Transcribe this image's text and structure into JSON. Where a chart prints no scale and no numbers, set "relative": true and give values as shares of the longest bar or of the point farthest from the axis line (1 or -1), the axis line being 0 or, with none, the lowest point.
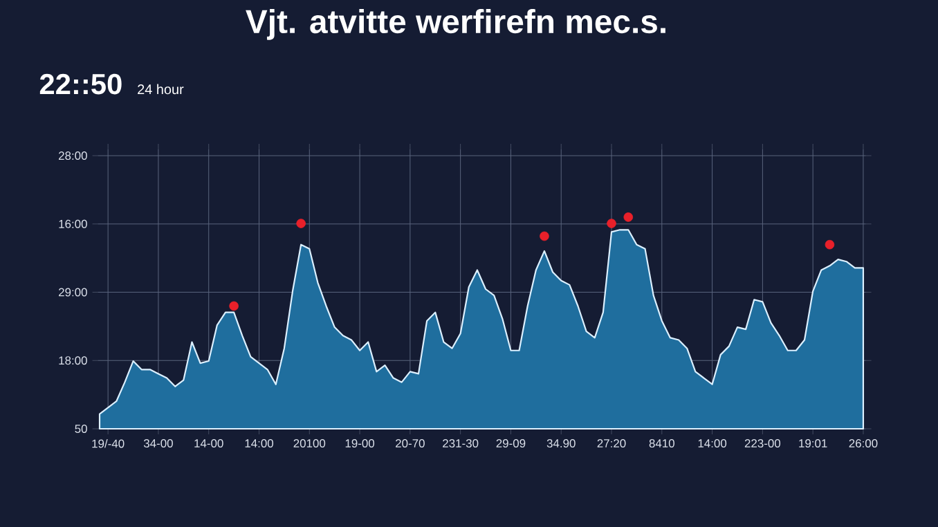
{
  "chart_data": {
    "type": "area",
    "relative": true,
    "title": "Vjt. atvitte werfirefn  mec.s.",
    "subtitle": "22::50",
    "annotations": [
      "24 hour",
      "28:00",
      "16:00",
      "29:00",
      "18:00",
      "50"
    ],
    "categories": [
      null,
      "19/-40",
      null,
      null,
      null,
      null,
      null,
      "34-00",
      null,
      null,
      null,
      null,
      null,
      "14-00",
      null,
      null,
      null,
      null,
      null,
      "14:00",
      null,
      null,
      null,
      null,
      null,
      "20100",
      null,
      null,
      null,
      null,
      null,
      "19-00",
      null,
      null,
      null,
      null,
      null,
      "20-70",
      null,
      null,
      null,
      null,
      null,
      "231-30",
      null,
      null,
      null,
      null,
      null,
      "29-09",
      null,
      null,
      null,
      null,
      null,
      "34.90",
      null,
      null,
      null,
      null,
      null,
      "27:20",
      null,
      null,
      null,
      null,
      null,
      "8410",
      null,
      null,
      null,
      null,
      null,
      "14:00",
      null,
      null,
      null,
      null,
      null,
      "223-00",
      null,
      null,
      null,
      null,
      null,
      "19:01",
      null,
      null,
      null,
      null,
      null,
      "26:00"
    ],
    "grid": true,
    "series": [
      {
        "color": "#1f6e9e",
        "values": [
          0.07,
          0.1,
          0.13,
          0.22,
          0.32,
          0.28,
          0.28,
          0.26,
          0.24,
          0.2,
          0.23,
          0.41,
          0.31,
          0.32,
          0.49,
          0.55,
          0.55,
          0.44,
          0.34,
          0.31,
          0.28,
          0.21,
          0.38,
          0.65,
          0.87,
          0.85,
          0.69,
          0.58,
          0.48,
          0.44,
          0.42,
          0.37,
          0.41,
          0.27,
          0.3,
          0.24,
          0.22,
          0.27,
          0.26,
          0.51,
          0.55,
          0.41,
          0.38,
          0.45,
          0.67,
          0.75,
          0.66,
          0.63,
          0.52,
          0.37,
          0.37,
          0.58,
          0.75,
          0.84,
          0.74,
          0.7,
          0.68,
          0.58,
          0.46,
          0.43,
          0.55,
          0.93,
          0.94,
          0.94,
          0.87,
          0.85,
          0.63,
          0.51,
          0.43,
          0.42,
          0.38,
          0.27,
          0.24,
          0.21,
          0.35,
          0.39,
          0.48,
          0.47,
          0.61,
          0.6,
          0.5,
          0.44,
          0.37,
          0.37,
          0.42,
          0.65,
          0.75,
          0.77,
          0.8,
          0.79,
          0.76,
          0.76
        ]
      },
      {
        "type": "scatter",
        "color": "#e8202a",
        "values": [
          null,
          null,
          null,
          null,
          null,
          null,
          null,
          null,
          null,
          null,
          null,
          null,
          null,
          null,
          null,
          null,
          0.58,
          null,
          null,
          null,
          null,
          null,
          null,
          null,
          0.97,
          null,
          null,
          null,
          null,
          null,
          null,
          null,
          null,
          null,
          null,
          null,
          null,
          null,
          null,
          null,
          null,
          null,
          null,
          null,
          null,
          null,
          null,
          null,
          null,
          null,
          null,
          null,
          null,
          0.91,
          null,
          null,
          null,
          null,
          null,
          null,
          null,
          0.97,
          null,
          1,
          null,
          null,
          null,
          null,
          null,
          null,
          null,
          null,
          null,
          null,
          null,
          null,
          null,
          null,
          null,
          null,
          null,
          null,
          null,
          null,
          null,
          null,
          null,
          0.87,
          null,
          null,
          null,
          null
        ]
      }
    ]
  }
}
